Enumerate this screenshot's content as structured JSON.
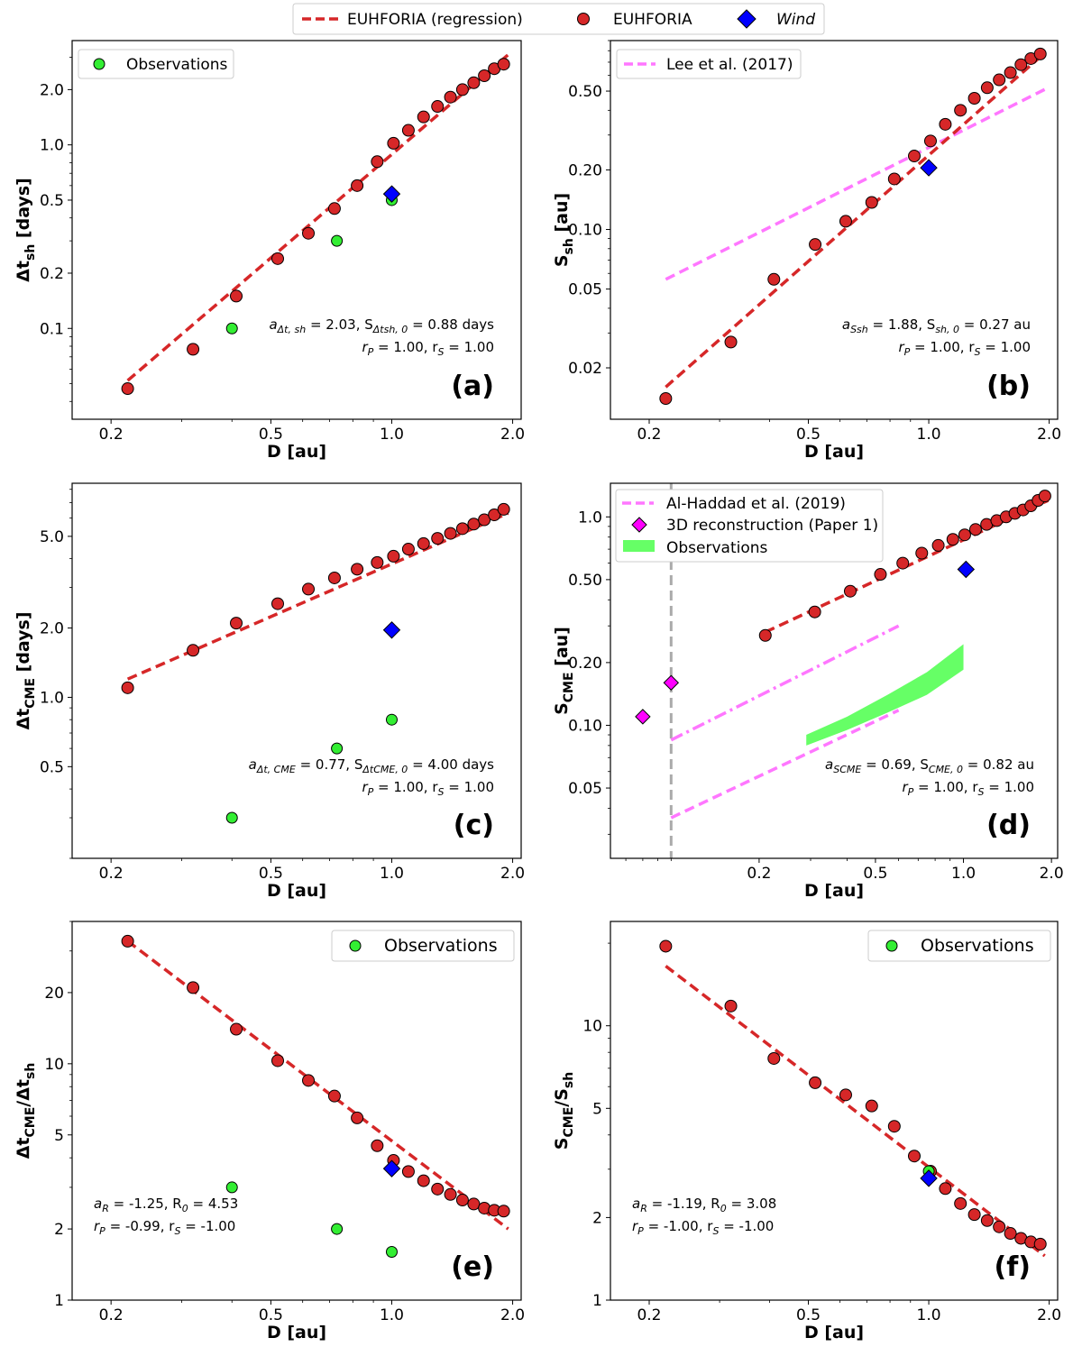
{
  "figure_legend": {
    "items": [
      {
        "label": "EUHFORIA (regression)",
        "kind": "dashed-line",
        "color": "#d62728"
      },
      {
        "label": "EUHFORIA",
        "kind": "circle",
        "color": "#d62728"
      },
      {
        "label": "Wind",
        "kind": "diamond",
        "color": "#0000ff",
        "italic": true
      }
    ]
  },
  "chart_data": [
    {
      "id": "a",
      "type": "scatter",
      "log_x": true,
      "log_y": true,
      "xlabel": "D [au]",
      "xlim": [
        0.16,
        2.1
      ],
      "xticks": [
        0.2,
        0.5,
        1.0,
        2.0
      ],
      "ylabel_main": "Δt",
      "ylabel_sub": "sh",
      "ylabel_tail": " [days]",
      "ylim": [
        0.032,
        3.7
      ],
      "yticks": [
        0.1,
        0.2,
        0.5,
        1.0,
        2.0
      ],
      "panel_label": "(a)",
      "stats_line1": {
        "pre": "a",
        "sub1": "Δt, sh",
        "mid": " = 2.03, S",
        "sub2": "Δtsh, 0",
        "post": " = 0.88 days"
      },
      "stats_line2": {
        "pre": "r",
        "sub1": "P",
        "mid": " = 1.00, r",
        "sub2": "S",
        "post": " = 1.00"
      },
      "euhforia": {
        "x": [
          0.22,
          0.32,
          0.41,
          0.52,
          0.62,
          0.72,
          0.82,
          0.92,
          1.01,
          1.1,
          1.2,
          1.3,
          1.4,
          1.5,
          1.6,
          1.7,
          1.8,
          1.9
        ],
        "y": [
          0.047,
          0.077,
          0.15,
          0.24,
          0.33,
          0.45,
          0.6,
          0.81,
          1.02,
          1.2,
          1.42,
          1.62,
          1.82,
          2.0,
          2.18,
          2.38,
          2.6,
          2.75
        ]
      },
      "regression": {
        "x": [
          0.22,
          1.95
        ],
        "y": [
          0.052,
          3.1
        ]
      },
      "wind": {
        "x": [
          1.0
        ],
        "y": [
          0.54
        ]
      },
      "observations": {
        "label": "Observations",
        "x": [
          0.4,
          0.73,
          1.0
        ],
        "y": [
          0.1,
          0.3,
          0.5
        ]
      },
      "legend_items": [
        "observations"
      ]
    },
    {
      "id": "b",
      "type": "scatter",
      "log_x": true,
      "log_y": true,
      "xlabel": "D [au]",
      "xlim": [
        0.16,
        2.1
      ],
      "xticks": [
        0.2,
        0.5,
        1.0,
        2.0
      ],
      "ylabel_main": "S",
      "ylabel_sub": "sh",
      "ylabel_tail": " [au]",
      "ylim": [
        0.011,
        0.9
      ],
      "yticks": [
        0.02,
        0.05,
        0.1,
        0.2,
        0.5
      ],
      "panel_label": "(b)",
      "stats_line1": {
        "pre": "a",
        "sub1": "Ssh",
        "mid": " = 1.88, S",
        "sub2": "sh, 0",
        "post": " = 0.27 au"
      },
      "stats_line2": {
        "pre": "r",
        "sub1": "P",
        "mid": " = 1.00, r",
        "sub2": "S",
        "post": " = 1.00"
      },
      "euhforia": {
        "x": [
          0.22,
          0.32,
          0.41,
          0.52,
          0.62,
          0.72,
          0.82,
          0.92,
          1.01,
          1.1,
          1.2,
          1.3,
          1.4,
          1.5,
          1.6,
          1.7,
          1.8,
          1.9
        ],
        "y": [
          0.014,
          0.027,
          0.056,
          0.084,
          0.11,
          0.137,
          0.18,
          0.235,
          0.28,
          0.34,
          0.4,
          0.46,
          0.52,
          0.57,
          0.62,
          0.68,
          0.73,
          0.77
        ]
      },
      "regression": {
        "x": [
          0.22,
          1.95
        ],
        "y": [
          0.016,
          0.78
        ]
      },
      "wind": {
        "x": [
          1.0
        ],
        "y": [
          0.205
        ]
      },
      "reference": {
        "label": "Lee et al. (2017)",
        "style": "dashed",
        "x": [
          0.22,
          1.95
        ],
        "y": [
          0.056,
          0.51
        ]
      },
      "legend_items": [
        "reference"
      ]
    },
    {
      "id": "c",
      "type": "scatter",
      "log_x": true,
      "log_y": true,
      "xlabel": "D [au]",
      "xlim": [
        0.16,
        2.1
      ],
      "xticks": [
        0.2,
        0.5,
        1.0,
        2.0
      ],
      "ylabel_main": "Δt",
      "ylabel_sub": "CME",
      "ylabel_tail": " [days]",
      "ylim": [
        0.2,
        8.5
      ],
      "yticks": [
        0.5,
        1.0,
        2.0,
        5.0
      ],
      "panel_label": "(c)",
      "stats_line1": {
        "pre": "a",
        "sub1": "Δt, CME",
        "mid": " = 0.77, S",
        "sub2": "ΔtCME, 0",
        "post": " = 4.00 days"
      },
      "stats_line2": {
        "pre": "r",
        "sub1": "P",
        "mid": " = 1.00, r",
        "sub2": "S",
        "post": " = 1.00"
      },
      "euhforia": {
        "x": [
          0.22,
          0.32,
          0.41,
          0.52,
          0.62,
          0.72,
          0.82,
          0.92,
          1.01,
          1.1,
          1.2,
          1.3,
          1.4,
          1.5,
          1.6,
          1.7,
          1.8,
          1.9
        ],
        "y": [
          1.1,
          1.6,
          2.1,
          2.55,
          2.95,
          3.3,
          3.6,
          3.85,
          4.1,
          4.4,
          4.65,
          4.9,
          5.15,
          5.4,
          5.65,
          5.9,
          6.2,
          6.55
        ]
      },
      "regression": {
        "x": [
          0.22,
          1.95
        ],
        "y": [
          1.2,
          6.3
        ]
      },
      "wind": {
        "x": [
          1.0
        ],
        "y": [
          1.96
        ]
      },
      "observations": {
        "label": "Observations",
        "x": [
          0.4,
          0.73,
          1.0
        ],
        "y": [
          0.3,
          0.6,
          0.8
        ]
      },
      "legend_items": []
    },
    {
      "id": "d",
      "type": "scatter",
      "log_x": true,
      "log_y": true,
      "xlabel": "D [au]",
      "xlim": [
        0.062,
        2.1
      ],
      "xticks": [
        0.2,
        0.5,
        1.0,
        2.0
      ],
      "ylabel_main": "S",
      "ylabel_sub": "CME",
      "ylabel_tail": " [au]",
      "ylim": [
        0.023,
        1.45
      ],
      "yticks": [
        0.05,
        0.1,
        0.2,
        0.5,
        1.0
      ],
      "panel_label": "(d)",
      "stats_line1": {
        "pre": "a",
        "sub1": "SCME",
        "mid": " = 0.69, S",
        "sub2": "CME, 0",
        "post": " = 0.82 au"
      },
      "stats_line2": {
        "pre": "r",
        "sub1": "P",
        "mid": " = 1.00, r",
        "sub2": "S",
        "post": " = 1.00"
      },
      "euhforia": {
        "x": [
          0.21,
          0.31,
          0.41,
          0.52,
          0.62,
          0.72,
          0.82,
          0.92,
          1.01,
          1.1,
          1.2,
          1.3,
          1.4,
          1.5,
          1.6,
          1.7,
          1.8,
          1.9
        ],
        "y": [
          0.27,
          0.35,
          0.44,
          0.53,
          0.6,
          0.67,
          0.73,
          0.78,
          0.82,
          0.87,
          0.92,
          0.96,
          1.0,
          1.04,
          1.08,
          1.13,
          1.2,
          1.26
        ]
      },
      "regression": {
        "x": [
          0.21,
          1.95
        ],
        "y": [
          0.28,
          1.2
        ]
      },
      "wind": {
        "x": [
          1.02
        ],
        "y": [
          0.56
        ]
      },
      "reference": {
        "label": "Al-Haddad et al. (2019)",
        "style": "dashed",
        "x": [
          0.1,
          0.6
        ],
        "y": [
          0.036,
          0.118
        ],
        "extra_dashdot": {
          "x": [
            0.1,
            0.6
          ],
          "y": [
            0.085,
            0.3
          ]
        }
      },
      "reconstruction": {
        "label": "3D reconstruction (Paper 1)",
        "color": "#ff00ff",
        "x": [
          0.08,
          0.1
        ],
        "y": [
          0.11,
          0.16
        ]
      },
      "observations_band": {
        "label": "Observations",
        "color": "#66ff66",
        "x": [
          0.29,
          0.4,
          0.55,
          0.75,
          1.0
        ],
        "lower": [
          0.08,
          0.095,
          0.115,
          0.14,
          0.185
        ],
        "upper": [
          0.09,
          0.11,
          0.14,
          0.18,
          0.245
        ]
      },
      "vline": {
        "x": 0.1,
        "color": "#aaaaaa",
        "style": "dashed"
      },
      "legend_items": [
        "reference",
        "reconstruction",
        "observations_band"
      ]
    },
    {
      "id": "e",
      "type": "scatter",
      "log_x": true,
      "log_y": true,
      "xlabel": "D [au]",
      "xlim": [
        0.16,
        2.1
      ],
      "xticks": [
        0.2,
        0.5,
        1.0,
        2.0
      ],
      "ylabel_main": "Δt",
      "ylabel_sub": "CME",
      "ylabel_mid": "/Δt",
      "ylabel_sub2": "sh",
      "ylabel_tail": "",
      "ylim": [
        1.0,
        40
      ],
      "yticks": [
        1,
        2,
        5,
        10,
        20
      ],
      "panel_label": "(e)",
      "stats_line1": {
        "pre": "a",
        "sub1": "R",
        "mid": " = -1.25, R",
        "sub2": "0",
        "post": " = 4.53"
      },
      "stats_line2": {
        "pre": "r",
        "sub1": "P",
        "mid": " = -0.99, r",
        "sub2": "S",
        "post": " = -1.00"
      },
      "euhforia": {
        "x": [
          0.22,
          0.32,
          0.41,
          0.52,
          0.62,
          0.72,
          0.82,
          0.92,
          1.01,
          1.1,
          1.2,
          1.3,
          1.4,
          1.5,
          1.6,
          1.7,
          1.8,
          1.9
        ],
        "y": [
          33,
          21,
          14,
          10.3,
          8.5,
          7.3,
          5.9,
          4.5,
          3.9,
          3.5,
          3.2,
          2.95,
          2.8,
          2.65,
          2.55,
          2.45,
          2.4,
          2.38
        ]
      },
      "regression": {
        "x": [
          0.22,
          1.95
        ],
        "y": [
          33,
          2.0
        ]
      },
      "wind": {
        "x": [
          1.0
        ],
        "y": [
          3.6
        ]
      },
      "observations": {
        "label": "Observations",
        "x": [
          0.4,
          0.73,
          1.0
        ],
        "y": [
          3.0,
          2.0,
          1.6
        ]
      },
      "legend_items": [
        "observations"
      ]
    },
    {
      "id": "f",
      "type": "scatter",
      "log_x": true,
      "log_y": true,
      "xlabel": "D [au]",
      "xlim": [
        0.16,
        2.1
      ],
      "xticks": [
        0.2,
        0.5,
        1.0,
        2.0
      ],
      "ylabel_main": "S",
      "ylabel_sub": "CME",
      "ylabel_mid": "/S",
      "ylabel_sub2": "sh",
      "ylabel_tail": "",
      "ylim": [
        1.0,
        24
      ],
      "yticks": [
        1,
        2,
        5,
        10
      ],
      "panel_label": "(f)",
      "stats_line1": {
        "pre": "a",
        "sub1": "R",
        "mid": " = -1.19, R",
        "sub2": "0",
        "post": " = 3.08"
      },
      "stats_line2": {
        "pre": "r",
        "sub1": "P",
        "mid": " = -1.00, r",
        "sub2": "S",
        "post": " = -1.00"
      },
      "euhforia": {
        "x": [
          0.22,
          0.32,
          0.41,
          0.52,
          0.62,
          0.72,
          0.82,
          0.92,
          1.01,
          1.1,
          1.2,
          1.3,
          1.4,
          1.5,
          1.6,
          1.7,
          1.8,
          1.9
        ],
        "y": [
          19.5,
          11.8,
          7.6,
          6.2,
          5.6,
          5.1,
          4.3,
          3.35,
          2.95,
          2.55,
          2.25,
          2.05,
          1.95,
          1.85,
          1.75,
          1.68,
          1.63,
          1.6
        ]
      },
      "regression": {
        "x": [
          0.22,
          1.95
        ],
        "y": [
          16.5,
          1.45
        ]
      },
      "wind": {
        "x": [
          1.0
        ],
        "y": [
          2.78
        ]
      },
      "observations": {
        "label": "Observations",
        "x": [
          1.0
        ],
        "y": [
          2.95
        ]
      },
      "legend_items": [
        "observations"
      ]
    }
  ]
}
